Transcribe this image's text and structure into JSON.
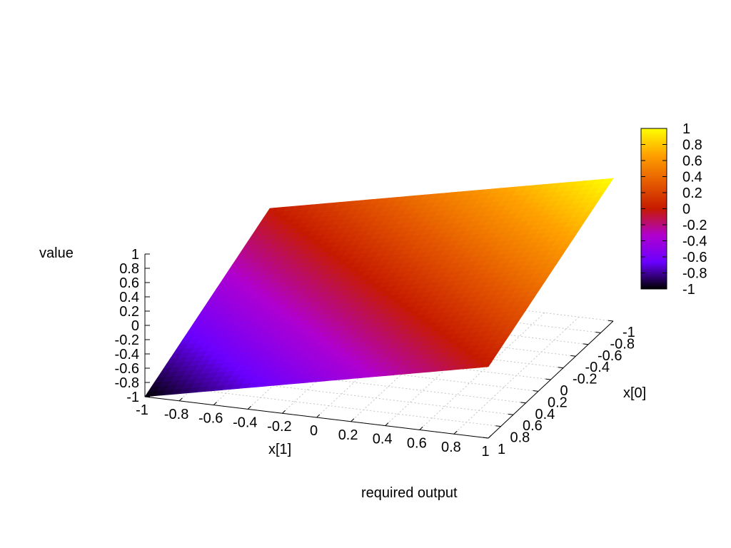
{
  "chart_data": {
    "type": "surface",
    "title": "required output",
    "xlabel": "x[1]",
    "ylabel": "x[0]",
    "zlabel": "value",
    "x_range": [
      -1,
      1
    ],
    "y_range": [
      -1,
      1
    ],
    "z_range": [
      -1,
      1
    ],
    "x_ticks": [
      "-1",
      "-0.8",
      "-0.6",
      "-0.4",
      "-0.2",
      "0",
      "0.2",
      "0.4",
      "0.6",
      "0.8",
      "1"
    ],
    "y_ticks": [
      "-1",
      "-0.8",
      "-0.6",
      "-0.4",
      "-0.2",
      "0",
      "0.2",
      "0.4",
      "0.6",
      "0.8",
      "1"
    ],
    "z_ticks": [
      "1",
      "0.8",
      "0.6",
      "0.4",
      "0.2",
      "0",
      "-0.2",
      "-0.4",
      "-0.6",
      "-0.8",
      "-1"
    ],
    "surface_corners": [
      {
        "x1": -1,
        "x0": -1,
        "value": 0
      },
      {
        "x1": -1,
        "x0": 1,
        "value": -1
      },
      {
        "x1": 1,
        "x0": 1,
        "value": 0
      },
      {
        "x1": 1,
        "x0": -1,
        "value": 1
      }
    ],
    "function": "value = (x[1] - x[0]) / 2",
    "grid": true,
    "colorbar": {
      "min": -1,
      "max": 1,
      "ticks": [
        "1",
        "0.8",
        "0.6",
        "0.4",
        "0.2",
        "0",
        "-0.2",
        "-0.4",
        "-0.6",
        "-0.8",
        "-1"
      ],
      "palette": [
        "#000000",
        "#6a00ff",
        "#b000d0",
        "#c61a00",
        "#e65c00",
        "#ffa000",
        "#ffff00"
      ]
    }
  }
}
